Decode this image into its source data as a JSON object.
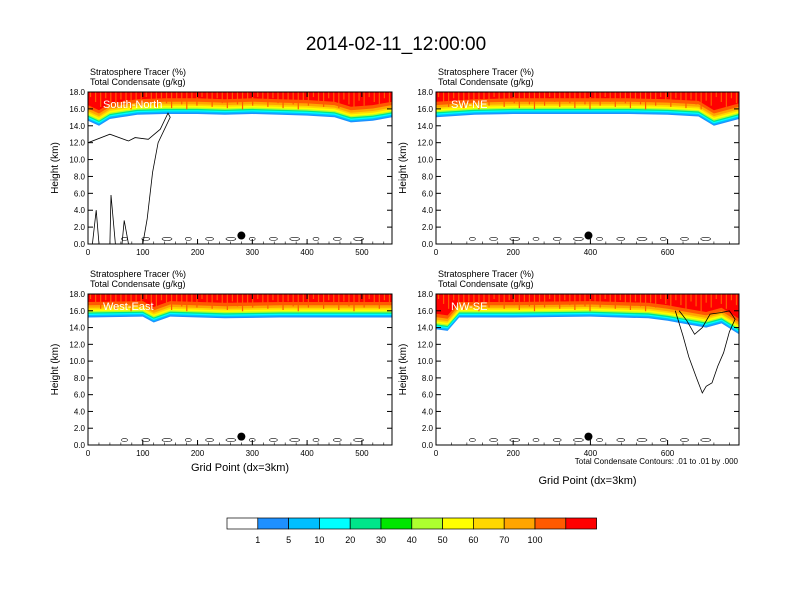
{
  "title": "2014-02-11_12:00:00",
  "footnote": "Total Condensate Contours: .01 to .01 by .000",
  "colorbar": {
    "labels": [
      "1",
      "5",
      "10",
      "20",
      "30",
      "40",
      "50",
      "60",
      "70",
      "100"
    ],
    "colors": [
      "#ffffff",
      "#1e90ff",
      "#00bfff",
      "#00ffff",
      "#00e58a",
      "#00e600",
      "#adff2f",
      "#ffff00",
      "#ffd700",
      "#ffa500",
      "#ff5a00",
      "#ff0000"
    ]
  },
  "chart_data": [
    {
      "type": "contour",
      "panel_label": "South-North",
      "header_line1": "Stratosphere Tracer   (%)",
      "header_line2": "Total Condensate   (g/kg)",
      "ylabel": "Height (km)",
      "xlabel": "",
      "xlim": [
        0,
        555
      ],
      "ylim": [
        0,
        18
      ],
      "xticks": [
        0,
        100,
        200,
        300,
        400,
        500
      ],
      "yticks": [
        "0.0",
        "2.0",
        "4.0",
        "6.0",
        "8.0",
        "10.0",
        "12.0",
        "14.0",
        "16.0",
        "18.0"
      ],
      "marker": {
        "x": 280,
        "y": 1.0
      },
      "tracer_base_km": [
        {
          "x": 0,
          "y": 14.6
        },
        {
          "x": 20,
          "y": 14.0
        },
        {
          "x": 40,
          "y": 14.8
        },
        {
          "x": 60,
          "y": 15.0
        },
        {
          "x": 90,
          "y": 15.3
        },
        {
          "x": 140,
          "y": 15.4
        },
        {
          "x": 200,
          "y": 15.4
        },
        {
          "x": 250,
          "y": 15.3
        },
        {
          "x": 300,
          "y": 15.4
        },
        {
          "x": 350,
          "y": 15.3
        },
        {
          "x": 400,
          "y": 15.2
        },
        {
          "x": 450,
          "y": 15.0
        },
        {
          "x": 480,
          "y": 14.4
        },
        {
          "x": 520,
          "y": 14.6
        },
        {
          "x": 555,
          "y": 15.0
        }
      ]
    },
    {
      "type": "contour",
      "panel_label": "SW-NE",
      "header_line1": "Stratosphere Tracer   (%)",
      "header_line2": "Total Condensate   (g/kg)",
      "ylabel": "Height (km)",
      "xlabel": "",
      "xlim": [
        0,
        785
      ],
      "ylim": [
        0,
        18
      ],
      "xticks": [
        0,
        200,
        400,
        600
      ],
      "yticks": [
        "0.0",
        "2.0",
        "4.0",
        "6.0",
        "8.0",
        "10.0",
        "12.0",
        "14.0",
        "16.0",
        "18.0"
      ],
      "marker": {
        "x": 395,
        "y": 1.0
      },
      "tracer_base_km": [
        {
          "x": 0,
          "y": 15.0
        },
        {
          "x": 100,
          "y": 15.3
        },
        {
          "x": 200,
          "y": 15.4
        },
        {
          "x": 300,
          "y": 15.4
        },
        {
          "x": 400,
          "y": 15.4
        },
        {
          "x": 500,
          "y": 15.4
        },
        {
          "x": 600,
          "y": 15.3
        },
        {
          "x": 680,
          "y": 15.1
        },
        {
          "x": 720,
          "y": 14.0
        },
        {
          "x": 785,
          "y": 14.8
        }
      ]
    },
    {
      "type": "contour",
      "panel_label": "West-East",
      "header_line1": "Stratosphere Tracer   (%)",
      "header_line2": "Total Condensate   (g/kg)",
      "ylabel": "Height (km)",
      "xlabel": "Grid Point (dx=3km)",
      "xlim": [
        0,
        555
      ],
      "ylim": [
        0,
        18
      ],
      "xticks": [
        0,
        100,
        200,
        300,
        400,
        500
      ],
      "yticks": [
        "0.0",
        "2.0",
        "4.0",
        "6.0",
        "8.0",
        "10.0",
        "12.0",
        "14.0",
        "16.0",
        "18.0"
      ],
      "marker": {
        "x": 280,
        "y": 1.0
      },
      "tracer_base_km": [
        {
          "x": 0,
          "y": 15.2
        },
        {
          "x": 100,
          "y": 15.3
        },
        {
          "x": 120,
          "y": 14.6
        },
        {
          "x": 150,
          "y": 15.3
        },
        {
          "x": 250,
          "y": 15.1
        },
        {
          "x": 350,
          "y": 15.2
        },
        {
          "x": 450,
          "y": 15.2
        },
        {
          "x": 555,
          "y": 15.2
        }
      ]
    },
    {
      "type": "contour",
      "panel_label": "NW-SE",
      "header_line1": "Stratosphere Tracer   (%)",
      "header_line2": "Total Condensate   (g/kg)",
      "ylabel": "Height (km)",
      "xlabel": "Grid Point (dx=3km)",
      "xlim": [
        0,
        785
      ],
      "ylim": [
        0,
        18
      ],
      "xticks": [
        0,
        200,
        400,
        600
      ],
      "yticks": [
        "0.0",
        "2.0",
        "4.0",
        "6.0",
        "8.0",
        "10.0",
        "12.0",
        "14.0",
        "16.0",
        "18.0"
      ],
      "marker": {
        "x": 395,
        "y": 1.0
      },
      "tracer_base_km": [
        {
          "x": 0,
          "y": 13.8
        },
        {
          "x": 30,
          "y": 13.6
        },
        {
          "x": 60,
          "y": 15.2
        },
        {
          "x": 200,
          "y": 15.2
        },
        {
          "x": 400,
          "y": 15.3
        },
        {
          "x": 550,
          "y": 15.1
        },
        {
          "x": 600,
          "y": 14.8
        },
        {
          "x": 650,
          "y": 14.4
        },
        {
          "x": 700,
          "y": 14.0
        },
        {
          "x": 740,
          "y": 14.5
        },
        {
          "x": 785,
          "y": 13.2
        }
      ]
    }
  ]
}
